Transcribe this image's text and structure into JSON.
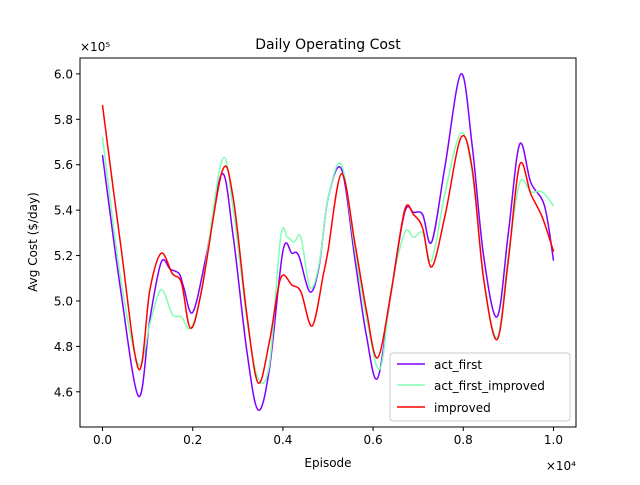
{
  "chart_data": {
    "type": "line",
    "title": "Daily Operating Cost",
    "xlabel": "Episode",
    "ylabel": "Avg Cost ($/day)",
    "x_multiplier_label": "×10⁴",
    "y_multiplier_label": "×10⁵",
    "xlim": [
      -0.05,
      1.05
    ],
    "ylim": [
      4.445,
      6.07
    ],
    "x_ticks": [
      0.0,
      0.2,
      0.4,
      0.6,
      0.8,
      1.0
    ],
    "x_tick_labels": [
      "0.0",
      "0.2",
      "0.4",
      "0.6",
      "0.8",
      "1.0"
    ],
    "y_ticks": [
      4.6,
      4.8,
      5.0,
      5.2,
      5.4,
      5.6,
      5.8,
      6.0
    ],
    "y_tick_labels": [
      "4.6",
      "4.8",
      "5.0",
      "5.2",
      "5.4",
      "5.6",
      "5.8",
      "6.0"
    ],
    "grid": false,
    "legend_position": "lower-right",
    "series": [
      {
        "name": "act_first",
        "color": "#8000ff",
        "x": [
          0.0,
          0.04,
          0.08,
          0.105,
          0.13,
          0.15,
          0.17,
          0.18,
          0.2,
          0.23,
          0.265,
          0.29,
          0.32,
          0.345,
          0.37,
          0.4,
          0.42,
          0.435,
          0.46,
          0.48,
          0.5,
          0.53,
          0.56,
          0.585,
          0.61,
          0.64,
          0.67,
          0.69,
          0.71,
          0.73,
          0.76,
          0.795,
          0.82,
          0.845,
          0.875,
          0.9,
          0.925,
          0.95,
          0.98,
          1.0
        ],
        "y": [
          5.64,
          5.05,
          4.58,
          4.92,
          5.17,
          5.14,
          5.12,
          5.06,
          4.95,
          5.2,
          5.56,
          5.28,
          4.78,
          4.52,
          4.7,
          5.22,
          5.21,
          5.2,
          5.04,
          5.15,
          5.45,
          5.58,
          5.18,
          4.85,
          4.66,
          5.04,
          5.39,
          5.39,
          5.38,
          5.26,
          5.6,
          6.0,
          5.68,
          5.2,
          4.93,
          5.3,
          5.69,
          5.52,
          5.42,
          5.18
        ]
      },
      {
        "name": "act_first_improved",
        "color": "#80ffb4",
        "x": [
          0.0,
          0.04,
          0.08,
          0.105,
          0.13,
          0.155,
          0.175,
          0.195,
          0.22,
          0.265,
          0.29,
          0.32,
          0.345,
          0.37,
          0.395,
          0.41,
          0.425,
          0.44,
          0.46,
          0.48,
          0.5,
          0.53,
          0.56,
          0.585,
          0.615,
          0.64,
          0.67,
          0.69,
          0.71,
          0.73,
          0.76,
          0.795,
          0.82,
          0.845,
          0.875,
          0.9,
          0.925,
          0.95,
          0.975,
          1.0
        ],
        "y": [
          5.72,
          5.1,
          4.72,
          4.9,
          5.05,
          4.94,
          4.93,
          4.88,
          5.05,
          5.62,
          5.4,
          4.92,
          4.66,
          4.72,
          5.28,
          5.28,
          5.26,
          5.28,
          5.06,
          5.16,
          5.45,
          5.6,
          5.22,
          4.93,
          4.7,
          5.05,
          5.3,
          5.28,
          5.3,
          5.18,
          5.48,
          5.74,
          5.56,
          5.1,
          4.84,
          5.2,
          5.52,
          5.48,
          5.48,
          5.42
        ]
      },
      {
        "name": "improved",
        "color": "#ff0000",
        "x": [
          0.0,
          0.04,
          0.08,
          0.105,
          0.13,
          0.155,
          0.175,
          0.195,
          0.22,
          0.265,
          0.29,
          0.32,
          0.345,
          0.37,
          0.395,
          0.42,
          0.44,
          0.465,
          0.49,
          0.5,
          0.53,
          0.56,
          0.585,
          0.61,
          0.64,
          0.67,
          0.69,
          0.71,
          0.73,
          0.76,
          0.795,
          0.82,
          0.845,
          0.875,
          0.9,
          0.925,
          0.95,
          0.975,
          1.0
        ],
        "y": [
          5.86,
          5.25,
          4.7,
          5.05,
          5.21,
          5.12,
          5.08,
          4.88,
          5.05,
          5.57,
          5.45,
          4.94,
          4.64,
          4.82,
          5.1,
          5.07,
          5.04,
          4.89,
          5.12,
          5.22,
          5.56,
          5.25,
          4.96,
          4.75,
          5.04,
          5.4,
          5.38,
          5.32,
          5.15,
          5.38,
          5.72,
          5.58,
          5.1,
          4.83,
          5.18,
          5.6,
          5.47,
          5.37,
          5.22
        ]
      }
    ]
  }
}
